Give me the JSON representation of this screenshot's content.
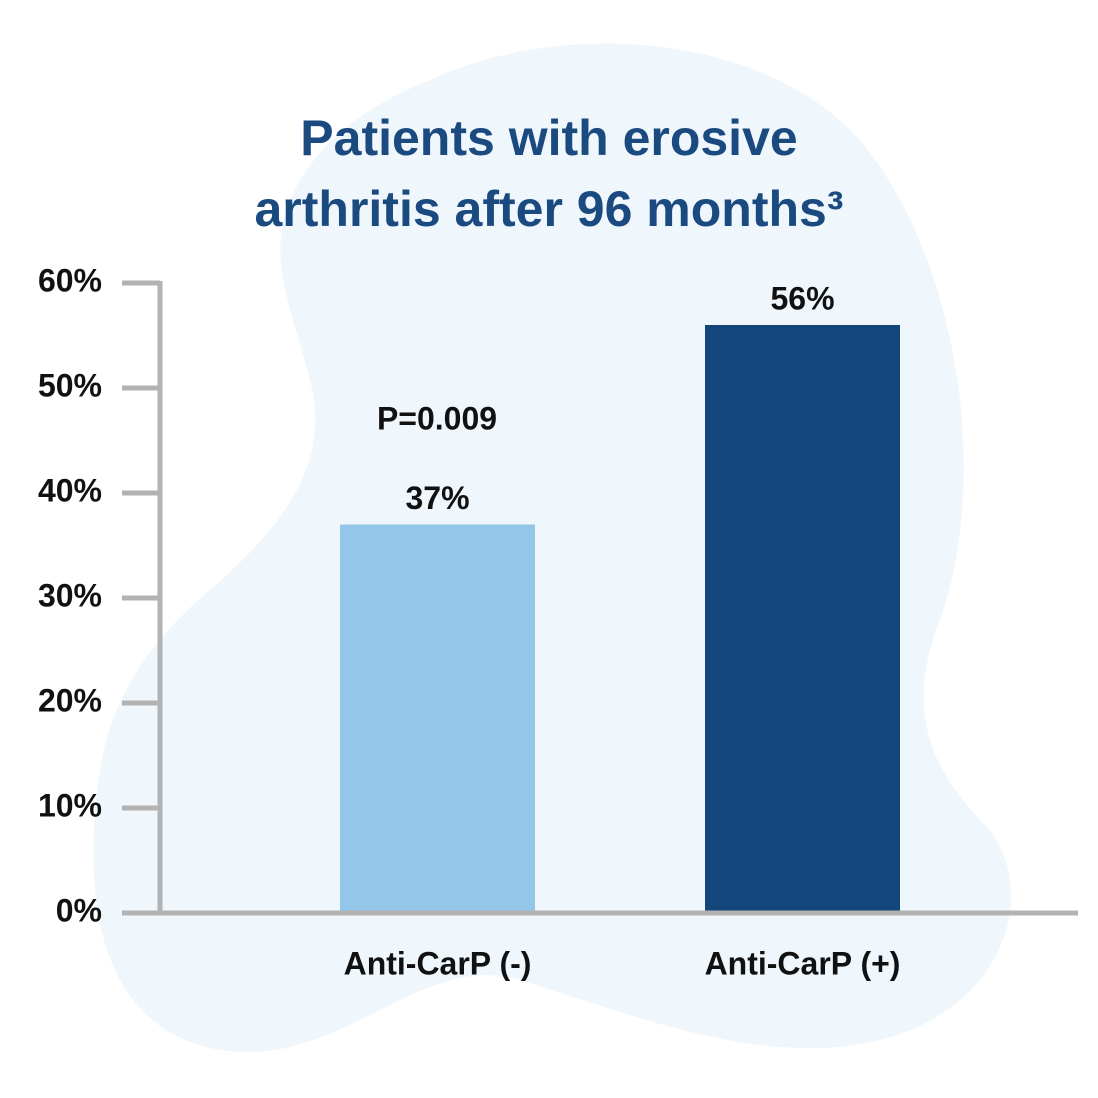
{
  "chart_data": {
    "type": "bar",
    "title": [
      "Patients with erosive",
      "arthritis after 96 months³"
    ],
    "categories": [
      "Anti-CarP (-)",
      "Anti-CarP (+)"
    ],
    "values": [
      37,
      56
    ],
    "value_labels": [
      "37%",
      "56%"
    ],
    "colors": [
      "#93c6e8",
      "#13477c"
    ],
    "annotation": "P=0.009",
    "ylim": [
      0,
      60
    ],
    "yticks": [
      {
        "value": 0,
        "label": "0%"
      },
      {
        "value": 10,
        "label": "10%"
      },
      {
        "value": 20,
        "label": "20%"
      },
      {
        "value": 30,
        "label": "30%"
      },
      {
        "value": 40,
        "label": "40%"
      },
      {
        "value": 50,
        "label": "50%"
      },
      {
        "value": 60,
        "label": "60%"
      }
    ]
  }
}
